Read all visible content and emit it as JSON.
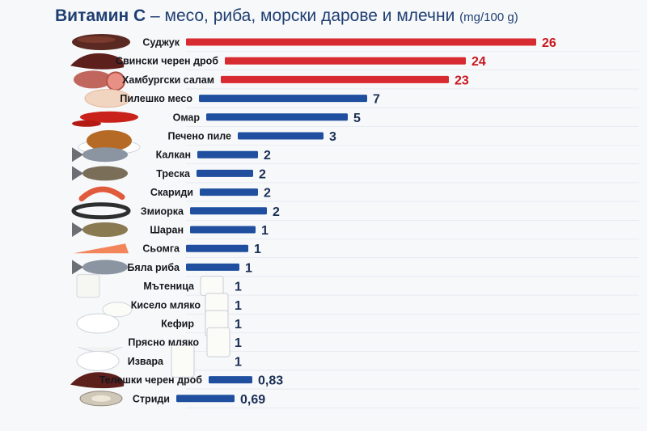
{
  "header": {
    "title_bold": "Витамин С",
    "title_rest": " – месо, риба, морски дарове и млечни",
    "title_unit": "(mg/100 g)"
  },
  "colors": {
    "title": "#1f3f73",
    "bar_red": "#d61f26",
    "bar_blue": "#1f4f9e",
    "value_red": "#c8171e",
    "value_blue": "#1b2f55",
    "grid": "#dde2ea"
  },
  "chart_data": {
    "type": "bar",
    "orientation": "horizontal",
    "unit": "mg/100 g",
    "categories": [
      "Суджук",
      "Свински черен дроб",
      "Хамбургски салам",
      "Пилешко месо",
      "Омар",
      "Печено пиле",
      "Калкан",
      "Треска",
      "Скариди",
      "Змиорка",
      "Шаран",
      "Сьомга",
      "Бяла риба",
      "Мътеница",
      "Кисело мляко",
      "Кефир",
      "Прясно мляко",
      "Извара",
      "Телешки черен дроб",
      "Стриди"
    ],
    "values": [
      26,
      24,
      23,
      7,
      5,
      3,
      2,
      2,
      2,
      2,
      1,
      1,
      1,
      1,
      1,
      1,
      1,
      1,
      0.83,
      0.69
    ],
    "value_labels": [
      "26",
      "24",
      "23",
      "7",
      "5",
      "3",
      "2",
      "2",
      "2",
      "2",
      "1",
      "1",
      "1",
      "1",
      "1",
      "1",
      "1",
      "1",
      "0,83",
      "0,69"
    ],
    "highlight": [
      "red",
      "red",
      "red",
      "blue",
      "blue",
      "blue",
      "blue",
      "blue",
      "blue",
      "blue",
      "blue",
      "blue",
      "blue",
      "blue",
      "blue",
      "blue",
      "blue",
      "blue",
      "blue",
      "blue"
    ],
    "icons": [
      "sausage-icon",
      "liver-icon",
      "salami-icon",
      "chicken-breast-icon",
      "lobster-icon",
      "roast-chicken-icon",
      "turbot-icon",
      "cod-icon",
      "shrimp-icon",
      "eel-icon",
      "carp-icon",
      "salmon-icon",
      "whitefish-icon",
      "buttermilk-icon",
      "yogurt-icon",
      "kefir-icon",
      "milk-icon",
      "cottage-cheese-icon",
      "beef-liver-icon",
      "oyster-icon"
    ]
  }
}
